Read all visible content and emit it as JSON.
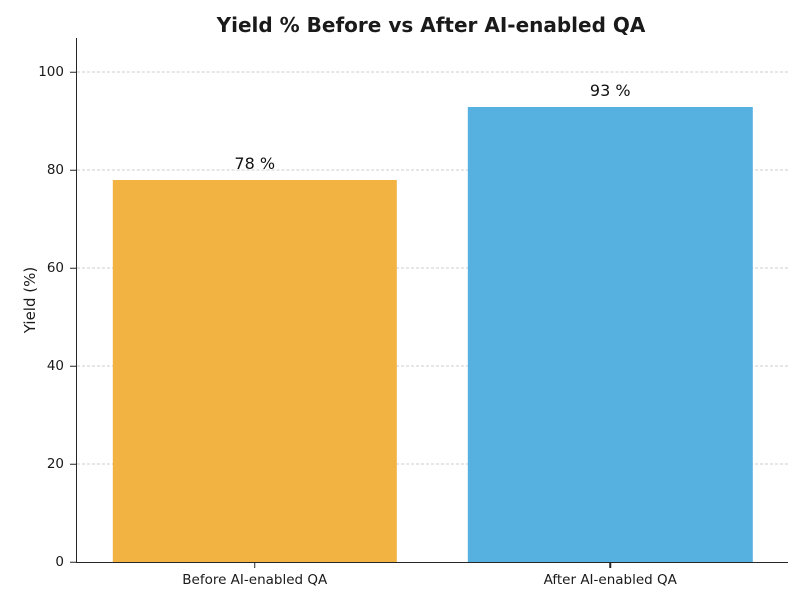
{
  "chart_data": {
    "type": "bar",
    "title": "Yield % Before vs After AI-enabled QA",
    "xlabel": "",
    "ylabel": "Yield (%)",
    "categories": [
      "Before AI-enabled QA",
      "After AI-enabled QA"
    ],
    "values": [
      78,
      93
    ],
    "value_labels": [
      "78 %",
      "93 %"
    ],
    "bar_colors": [
      "#F2B342",
      "#56B0E0"
    ],
    "yticks": [
      0,
      20,
      40,
      60,
      80,
      100
    ],
    "ylim": [
      0,
      107
    ],
    "grid": "horizontal dashed gridlines at y ticks",
    "legend": "none",
    "spines": [
      "left",
      "bottom"
    ],
    "colors": {
      "grid_color": "#cccccc",
      "axis_color": "#262626",
      "text_color": "#1a1a1a",
      "background": "#ffffff"
    }
  }
}
